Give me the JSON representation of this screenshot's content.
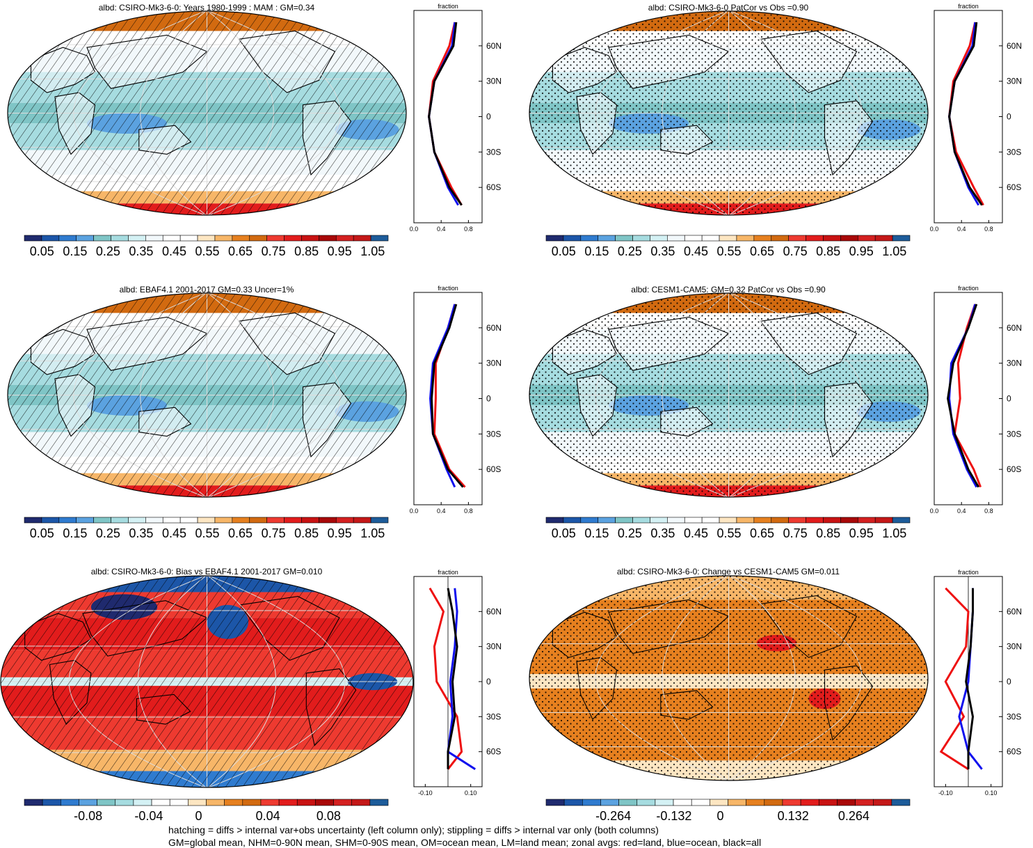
{
  "panels": [
    {
      "id": "p1",
      "title": "albd: CSIRO-Mk3-6-0: Years 1980-1999 : MAM : GM=0.34",
      "scale": "abs",
      "pattern": "hatch",
      "palette": "abs",
      "cbar_labels": [
        "0.05",
        "0.15",
        "0.25",
        "0.35",
        "0.45",
        "0.55",
        "0.65",
        "0.75",
        "0.85",
        "0.95",
        "1.05"
      ],
      "zonal": {
        "title": "fraction",
        "xticks": [
          "0.0",
          "0.4",
          "0.8"
        ],
        "yticks": [
          "60N",
          "30N",
          "0",
          "30S",
          "60S"
        ]
      }
    },
    {
      "id": "p2",
      "title": "albd: CSIRO-Mk3-6-0 PatCor vs Obs =0.90",
      "scale": "abs",
      "pattern": "stipple",
      "palette": "abs",
      "cbar_labels": [
        "0.05",
        "0.15",
        "0.25",
        "0.35",
        "0.45",
        "0.55",
        "0.65",
        "0.75",
        "0.85",
        "0.95",
        "1.05"
      ],
      "zonal": {
        "title": "fraction",
        "xticks": [
          "0.0",
          "0.4",
          "0.8"
        ],
        "yticks": [
          "60N",
          "30N",
          "0",
          "30S",
          "60S"
        ]
      }
    },
    {
      "id": "p3",
      "title": "albd: EBAF4.1 2001-2017 GM=0.33 Uncer=1%",
      "scale": "abs",
      "pattern": "hatch",
      "palette": "abs",
      "cbar_labels": [
        "0.05",
        "0.15",
        "0.25",
        "0.35",
        "0.45",
        "0.55",
        "0.65",
        "0.75",
        "0.85",
        "0.95",
        "1.05"
      ],
      "zonal": {
        "title": "fraction",
        "xticks": [
          "0.0",
          "0.4",
          "0.8"
        ],
        "yticks": [
          "60N",
          "30N",
          "0",
          "30S",
          "60S"
        ]
      }
    },
    {
      "id": "p4",
      "title": "albd: CESM1-CAM5: GM=0.32 PatCor vs Obs =0.90",
      "scale": "abs",
      "pattern": "stipple",
      "palette": "abs",
      "cbar_labels": [
        "0.05",
        "0.15",
        "0.25",
        "0.35",
        "0.45",
        "0.55",
        "0.65",
        "0.75",
        "0.85",
        "0.95",
        "1.05"
      ],
      "zonal": {
        "title": "fraction",
        "xticks": [
          "0.0",
          "0.4",
          "0.8"
        ],
        "yticks": [
          "60N",
          "30N",
          "0",
          "30S",
          "60S"
        ]
      }
    },
    {
      "id": "p5",
      "title": "albd: CSIRO-Mk3-6-0: Bias vs EBAF4.1 2001-2017 GM=0.010",
      "scale": "diff",
      "pattern": "hatch",
      "palette": "diff",
      "cbar_labels": [
        "-0.08",
        "-0.04",
        "0",
        "0.04",
        "0.08"
      ],
      "zonal": {
        "title": "fraction",
        "xticks": [
          "-0.10",
          "0.10"
        ],
        "yticks": [
          "60N",
          "30N",
          "0",
          "30S",
          "60S"
        ]
      }
    },
    {
      "id": "p6",
      "title": "albd: CSIRO-Mk3-6-0: Change vs CESM1-CAM5 GM=0.011",
      "scale": "diff",
      "pattern": "stipple",
      "palette": "diff",
      "cbar_labels": [
        "-0.264",
        "-0.132",
        "0",
        "0.132",
        "0.264"
      ],
      "zonal": {
        "title": "fraction",
        "xticks": [
          "-0.10",
          "0.10"
        ],
        "yticks": [
          "60N",
          "30N",
          "0",
          "30S",
          "60S"
        ]
      }
    }
  ],
  "colors": {
    "abs": [
      "#1f2a6e",
      "#1c56a8",
      "#2f7bcf",
      "#5ba2e0",
      "#7fc5c6",
      "#a6dce0",
      "#d4f1f4",
      "#f2f8fb",
      "#ffffff",
      "#ffffff",
      "#fde6c2",
      "#f7b668",
      "#e6801f",
      "#d26a10",
      "#ee3a30",
      "#e21c1c",
      "#c81212",
      "#a80808",
      "#d42020",
      "#c41818",
      "#1d5c9a"
    ],
    "diff": [
      "#1f2a6e",
      "#1c56a8",
      "#2f7bcf",
      "#5ba2e0",
      "#7fc5c6",
      "#a6dce0",
      "#d4f1f4",
      "#ffffff",
      "#ffffff",
      "#fde6c2",
      "#f7b668",
      "#e6801f",
      "#d26a10",
      "#ee3a30",
      "#e21c1c",
      "#c81212",
      "#a80808",
      "#d42020",
      "#c41818",
      "#1d5c9a"
    ],
    "land_line": "#ee1111",
    "ocean_line": "#1111ee",
    "all_line": "#000000"
  },
  "chart_data": [
    {
      "type": "heatmap",
      "title": "albd: CSIRO-Mk3-6-0: Years 1980-1999 : MAM : GM=0.34",
      "units": "fraction",
      "zonal_mean": {
        "lat": [
          80,
          60,
          30,
          0,
          -30,
          -60,
          -75
        ],
        "all": [
          0.62,
          0.58,
          0.3,
          0.22,
          0.3,
          0.52,
          0.7
        ],
        "land": [
          0.6,
          0.52,
          0.28,
          0.22,
          0.3,
          0.55,
          0.7
        ],
        "ocean": [
          0.6,
          0.56,
          0.3,
          0.22,
          0.3,
          0.5,
          0.65
        ]
      }
    },
    {
      "type": "heatmap",
      "title": "albd: CSIRO-Mk3-6-0 PatCor vs Obs =0.90",
      "units": "fraction",
      "zonal_mean": {
        "lat": [
          80,
          60,
          30,
          0,
          -30,
          -60,
          -75
        ],
        "all": [
          0.62,
          0.58,
          0.3,
          0.22,
          0.3,
          0.52,
          0.7
        ],
        "land": [
          0.6,
          0.52,
          0.28,
          0.22,
          0.32,
          0.58,
          0.72
        ],
        "ocean": [
          0.6,
          0.56,
          0.3,
          0.22,
          0.3,
          0.5,
          0.65
        ]
      }
    },
    {
      "type": "heatmap",
      "title": "albd: EBAF4.1 2001-2017 GM=0.33 Uncer=1%",
      "units": "fraction",
      "zonal_mean": {
        "lat": [
          80,
          60,
          30,
          0,
          -30,
          -60,
          -75
        ],
        "all": [
          0.62,
          0.52,
          0.3,
          0.26,
          0.28,
          0.5,
          0.72
        ],
        "land": [
          0.6,
          0.5,
          0.32,
          0.32,
          0.3,
          0.52,
          0.75
        ],
        "ocean": [
          0.6,
          0.5,
          0.28,
          0.24,
          0.28,
          0.48,
          0.6
        ]
      }
    },
    {
      "type": "heatmap",
      "title": "albd: CESM1-CAM5: GM=0.32 PatCor vs Obs =0.90",
      "units": "fraction",
      "zonal_mean": {
        "lat": [
          80,
          60,
          30,
          0,
          -30,
          -60,
          -75
        ],
        "all": [
          0.62,
          0.5,
          0.28,
          0.2,
          0.3,
          0.5,
          0.65
        ],
        "land": [
          0.6,
          0.48,
          0.35,
          0.38,
          0.3,
          0.58,
          0.68
        ],
        "ocean": [
          0.6,
          0.5,
          0.25,
          0.22,
          0.28,
          0.48,
          0.62
        ]
      }
    },
    {
      "type": "heatmap",
      "title": "albd: CSIRO-Mk3-6-0: Bias vs EBAF4.1 2001-2017 GM=0.010",
      "units": "fraction",
      "zonal_mean": {
        "lat": [
          80,
          60,
          30,
          0,
          -30,
          -60,
          -75
        ],
        "all": [
          0.0,
          0.02,
          0.04,
          0.02,
          0.03,
          0.0,
          0.0
        ],
        "land": [
          -0.08,
          -0.02,
          -0.06,
          -0.05,
          0.04,
          0.06,
          0.0
        ],
        "ocean": [
          0.03,
          0.04,
          0.03,
          0.01,
          0.02,
          0.0,
          0.12
        ]
      }
    },
    {
      "type": "heatmap",
      "title": "albd: CSIRO-Mk3-6-0: Change vs CESM1-CAM5 GM=0.011",
      "units": "fraction",
      "zonal_mean": {
        "lat": [
          80,
          60,
          30,
          0,
          -30,
          -60,
          -75
        ],
        "all": [
          0.02,
          0.02,
          0.01,
          -0.01,
          0.02,
          0.0,
          0.0
        ],
        "land": [
          -0.1,
          0.0,
          -0.01,
          -0.1,
          -0.02,
          -0.12,
          0.0
        ],
        "ocean": [
          0.02,
          0.02,
          0.01,
          0.0,
          -0.04,
          0.0,
          0.06
        ]
      }
    }
  ],
  "footer": {
    "line1": "hatching = diffs > internal var+obs uncertainty (left column only); stippling = diffs > internal var only (both columns)",
    "line2": "GM=global mean, NHM=0-90N mean, SHM=0-90S mean, OM=ocean mean, LM=land mean; zonal avgs: red=land, blue=ocean, black=all"
  }
}
